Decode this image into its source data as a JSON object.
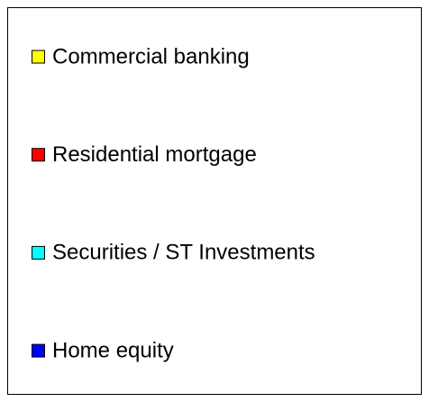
{
  "legend": {
    "items": [
      {
        "label": "Commercial banking",
        "color": "#ffff00"
      },
      {
        "label": "Residential mortgage",
        "color": "#ff0000"
      },
      {
        "label": "Securities / ST Investments",
        "color": "#00ffff"
      },
      {
        "label": "Home equity",
        "color": "#0000ff"
      }
    ]
  }
}
